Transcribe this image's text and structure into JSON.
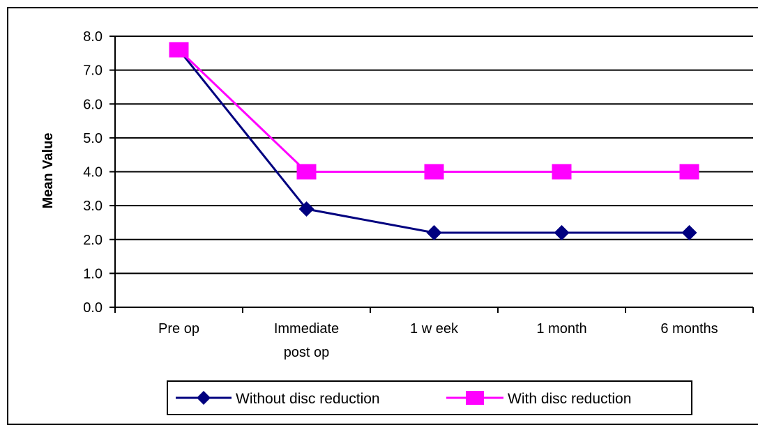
{
  "chart_data": {
    "type": "line",
    "title": "",
    "xlabel": "",
    "ylabel": "Mean Value",
    "categories": [
      [
        "Pre op"
      ],
      [
        "Immediate",
        "post op"
      ],
      [
        "1 w eek"
      ],
      [
        "1 month"
      ],
      [
        "6 months"
      ]
    ],
    "y_tick_labels": [
      "0.0",
      "1.0",
      "2.0",
      "3.0",
      "4.0",
      "5.0",
      "6.0",
      "7.0",
      "8.0"
    ],
    "ylim": [
      0,
      8
    ],
    "grid": true,
    "legend_position": "bottom",
    "series": [
      {
        "name": "Without disc reduction",
        "color": "#00007f",
        "marker": "diamond",
        "values": [
          7.6,
          2.9,
          2.2,
          2.2,
          2.2
        ]
      },
      {
        "name": "With disc reduction",
        "color": "#ff00ff",
        "marker": "square",
        "values": [
          7.6,
          4.0,
          4.0,
          4.0,
          4.0
        ]
      }
    ]
  }
}
